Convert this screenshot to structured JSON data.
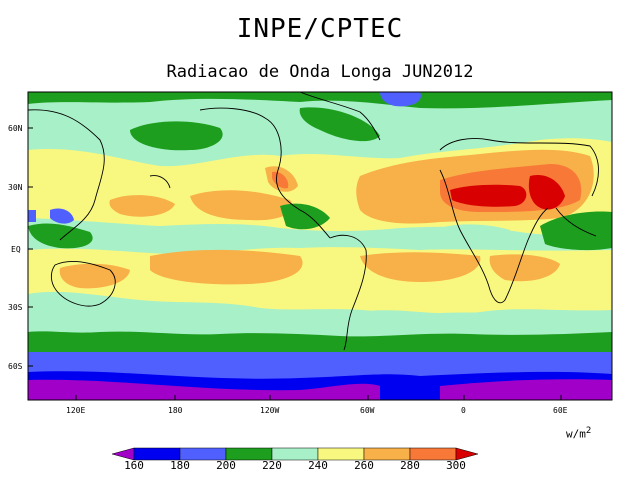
{
  "header": {
    "title": "INPE/CPTEC",
    "subtitle": "Radiacao de Onda Longa JUN2012"
  },
  "map": {
    "lat_labels": [
      "60N",
      "30N",
      "EQ",
      "30S",
      "60S"
    ],
    "lon_labels": [
      "120E",
      "180",
      "120W",
      "60W",
      "0",
      "60E"
    ],
    "unit_base": "w/m",
    "unit_exp": "2"
  },
  "colorbar": {
    "levels": [
      "160",
      "180",
      "200",
      "220",
      "240",
      "260",
      "280",
      "300"
    ],
    "colors": [
      "#a000c8",
      "#0000f0",
      "#5060ff",
      "#1e9e1e",
      "#a8f0c8",
      "#f8f880",
      "#f8b048",
      "#f87838",
      "#d80000"
    ]
  }
}
